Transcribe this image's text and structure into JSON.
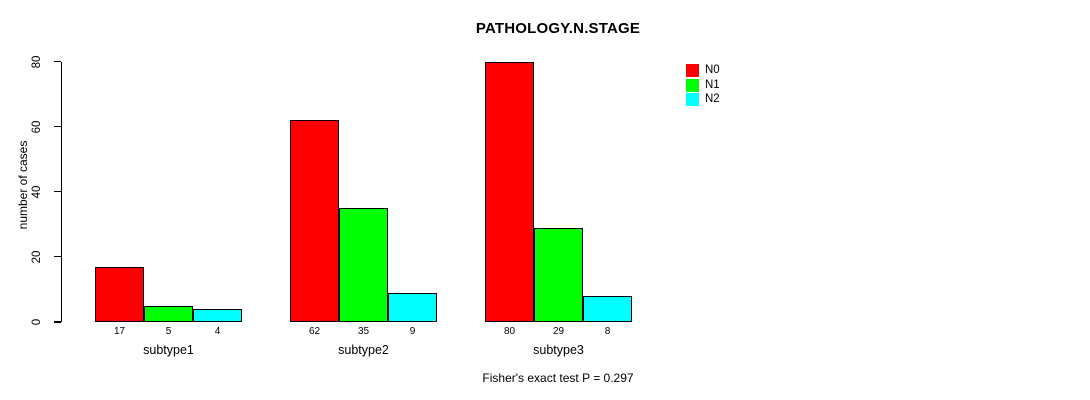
{
  "chart_data": {
    "type": "bar",
    "title": "PATHOLOGY.N.STAGE",
    "xlabel": "",
    "ylabel": "number of cases",
    "categories": [
      "subtype1",
      "subtype2",
      "subtype3"
    ],
    "series": [
      {
        "name": "N0",
        "color": "#ff0000",
        "values": [
          17,
          62,
          80
        ]
      },
      {
        "name": "N1",
        "color": "#00ff00",
        "values": [
          5,
          35,
          29
        ]
      },
      {
        "name": "N2",
        "color": "#00ffff",
        "values": [
          4,
          9,
          8
        ]
      }
    ],
    "ylim": [
      0,
      80
    ],
    "yticks": [
      0,
      20,
      40,
      60,
      80
    ],
    "grid": false,
    "legend_position": "top-right",
    "bar_value_labels": true,
    "annotation": "Fisher's exact test P = 0.297"
  },
  "colors": {
    "axis": "#000000",
    "text": "#000000",
    "background": "#ffffff"
  }
}
